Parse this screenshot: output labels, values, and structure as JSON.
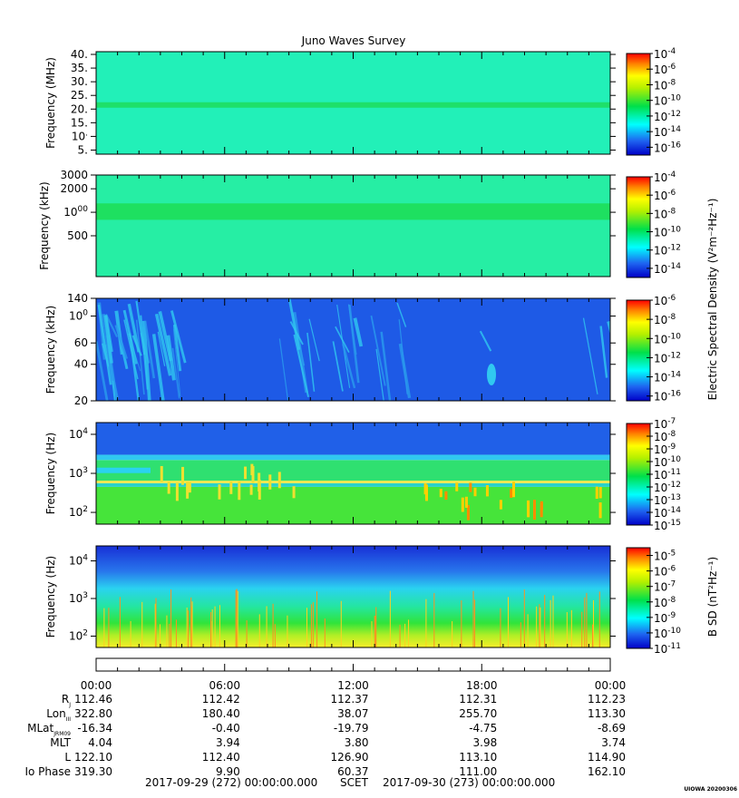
{
  "title": "Juno Waves Survey",
  "chart_data": [
    {
      "type": "heatmap",
      "ylabel": "Frequency (MHz)",
      "yticks": [
        "5.",
        "10.",
        "15.",
        "20.",
        "25.",
        "30.",
        "35.",
        "40."
      ],
      "ytick_values": [
        5,
        10,
        15,
        20,
        25,
        30,
        35,
        40
      ],
      "ylim": [
        3.5,
        41
      ],
      "yscale": "linear",
      "colorbar_ticks": [
        "-4",
        "-6",
        "-8",
        "-10",
        "-12",
        "-14",
        "-16"
      ],
      "colorbar_range": [
        -17,
        -4
      ],
      "background_color": "#22f0b8",
      "band_color": "#1ee06a",
      "bands": [
        [
          20.5,
          22.5
        ]
      ]
    },
    {
      "type": "heatmap",
      "ylabel": "Frequency (kHz)",
      "yticks": [
        "500",
        "1000",
        "2000",
        "3000"
      ],
      "ytick_values": [
        500,
        1000,
        2000,
        3000
      ],
      "ylim": [
        150,
        3000
      ],
      "yscale": "log",
      "colorbar_ticks": [
        "-4",
        "-6",
        "-8",
        "-10",
        "-12",
        "-14"
      ],
      "colorbar_range": [
        -15,
        -4
      ],
      "background_color": "#26eea4",
      "band_color": "#1ee060",
      "bands": [
        [
          800,
          1300
        ]
      ]
    },
    {
      "type": "heatmap",
      "ylabel": "Frequency (kHz)",
      "yticks": [
        "20",
        "40",
        "60",
        "100",
        "140"
      ],
      "ytick_values": [
        20,
        40,
        60,
        100,
        140
      ],
      "ylim": [
        20,
        140
      ],
      "yscale": "log",
      "colorbar_ticks": [
        "-6",
        "-8",
        "-10",
        "-12",
        "-14",
        "-16"
      ],
      "colorbar_range": [
        -16.5,
        -6
      ],
      "background_color": "#1e5ae6",
      "colorbar_title": "Electric Spectral Density (V²m⁻²Hz⁻¹)"
    },
    {
      "type": "heatmap",
      "ylabel": "Frequency (Hz)",
      "yticks": [
        "10²",
        "10³",
        "10⁴"
      ],
      "ytick_values": [
        100,
        1000,
        10000
      ],
      "ylim": [
        50,
        20000
      ],
      "yscale": "log",
      "colorbar_ticks": [
        "-7",
        "-8",
        "-9",
        "-10",
        "-11",
        "-12",
        "-13",
        "-14",
        "-15"
      ],
      "colorbar_range": [
        -15,
        -7
      ],
      "layers": [
        {
          "from": 50,
          "to": 450,
          "color": "#46e43a"
        },
        {
          "from": 450,
          "to": 560,
          "color": "#2ad2c8"
        },
        {
          "from": 560,
          "to": 650,
          "color": "#f0e84a"
        },
        {
          "from": 650,
          "to": 2200,
          "color": "#2fe070"
        },
        {
          "from": 2200,
          "to": 3000,
          "color": "#30c8f0"
        },
        {
          "from": 3000,
          "to": 20000,
          "color": "#2060e8"
        }
      ]
    },
    {
      "type": "heatmap",
      "ylabel": "Frequency (Hz)",
      "yticks": [
        "10²",
        "10³",
        "10⁴"
      ],
      "ytick_values": [
        100,
        1000,
        10000
      ],
      "ylim": [
        50,
        25000
      ],
      "yscale": "log",
      "colorbar_ticks": [
        "-5",
        "-6",
        "-7",
        "-8",
        "-9",
        "-10",
        "-11"
      ],
      "colorbar_range": [
        -11,
        -4.5
      ],
      "colorbar_title": "B SD (nT²Hz⁻¹)",
      "layers": [
        {
          "from": 50,
          "to": 90,
          "color": "#f0f02a"
        },
        {
          "from": 90,
          "to": 160,
          "color": "#b6f024"
        },
        {
          "from": 160,
          "to": 400,
          "color": "#2ee63a"
        },
        {
          "from": 400,
          "to": 1200,
          "color": "#24e6a6"
        },
        {
          "from": 1200,
          "to": 3500,
          "color": "#28c8f0"
        },
        {
          "from": 3500,
          "to": 8000,
          "color": "#2a86ec"
        },
        {
          "from": 8000,
          "to": 25000,
          "color": "#1a3ee0"
        }
      ]
    }
  ],
  "time_axis": {
    "ticks": [
      "00:00",
      "06:00",
      "12:00",
      "18:00",
      "00:00"
    ],
    "rows": [
      {
        "label": "R",
        "sub": "J",
        "values": [
          "112.46",
          "112.42",
          "112.37",
          "112.31",
          "112.23"
        ]
      },
      {
        "label": "Lon",
        "sub": "III",
        "values": [
          "322.80",
          "180.40",
          "38.07",
          "255.70",
          "113.30"
        ]
      },
      {
        "label": "MLat",
        "sub": "JRM09",
        "values": [
          "-16.34",
          "-0.40",
          "-19.79",
          "-4.75",
          "-8.69"
        ]
      },
      {
        "label": "MLT",
        "sub": "",
        "values": [
          "4.04",
          "3.94",
          "3.80",
          "3.98",
          "3.74"
        ]
      },
      {
        "label": "L",
        "sub": "",
        "values": [
          "122.10",
          "112.40",
          "126.90",
          "113.10",
          "114.90"
        ]
      },
      {
        "label": "Io Phase",
        "sub": "",
        "values": [
          "319.30",
          "9.90",
          "60.37",
          "111.00",
          "162.10"
        ]
      }
    ],
    "footer": {
      "start": "2017-09-29 (272) 00:00:00.000",
      "label": "SCET",
      "end": "2017-09-30 (273) 00:00:00.000"
    },
    "stamp": "UIOWA 20200306"
  }
}
